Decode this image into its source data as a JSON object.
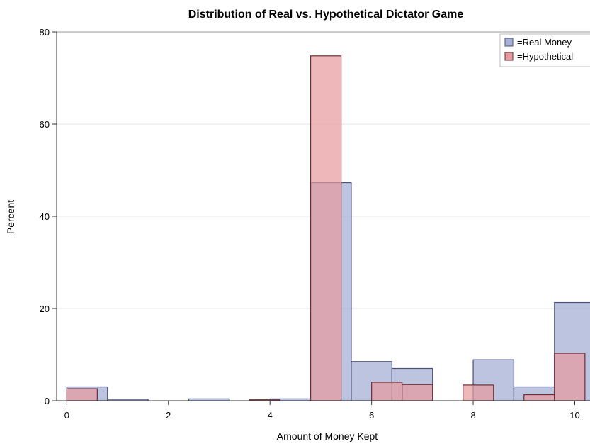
{
  "chart_data": {
    "type": "bar",
    "title": "Distribution of Real vs. Hypothetical Dictator Game",
    "xlabel": "Amount of Money Kept",
    "ylabel": "Percent",
    "xlim": [
      -0.2,
      10.3
    ],
    "ylim": [
      0,
      80
    ],
    "xticks": [
      0,
      2,
      4,
      6,
      8,
      10
    ],
    "yticks": [
      0,
      20,
      40,
      60,
      80
    ],
    "grid": true,
    "legend_position": "top-right",
    "series": [
      {
        "name": "=Real Money",
        "color": "#a7b0d6",
        "stroke": "#4b527a",
        "bins": [
          {
            "x0": 0.0,
            "x1": 0.8,
            "y": 3.0
          },
          {
            "x0": 0.8,
            "x1": 1.6,
            "y": 0.3
          },
          {
            "x0": 2.4,
            "x1": 3.2,
            "y": 0.4
          },
          {
            "x0": 4.0,
            "x1": 4.8,
            "y": 0.4
          },
          {
            "x0": 4.8,
            "x1": 5.6,
            "y": 47.3
          },
          {
            "x0": 5.6,
            "x1": 6.4,
            "y": 8.5
          },
          {
            "x0": 6.4,
            "x1": 7.2,
            "y": 7.0
          },
          {
            "x0": 8.0,
            "x1": 8.8,
            "y": 8.9
          },
          {
            "x0": 8.8,
            "x1": 9.6,
            "y": 3.0
          },
          {
            "x0": 9.6,
            "x1": 10.4,
            "y": 21.3
          }
        ]
      },
      {
        "name": "=Hypothetical",
        "color": "#e79a9e",
        "stroke": "#6b2f35",
        "bins": [
          {
            "x0": 0.0,
            "x1": 0.6,
            "y": 2.6
          },
          {
            "x0": 3.6,
            "x1": 4.2,
            "y": 0.2
          },
          {
            "x0": 4.8,
            "x1": 5.4,
            "y": 74.8
          },
          {
            "x0": 6.0,
            "x1": 6.6,
            "y": 4.0
          },
          {
            "x0": 6.6,
            "x1": 7.2,
            "y": 3.5
          },
          {
            "x0": 7.8,
            "x1": 8.4,
            "y": 3.4
          },
          {
            "x0": 9.0,
            "x1": 9.6,
            "y": 1.3
          },
          {
            "x0": 9.6,
            "x1": 10.2,
            "y": 10.3
          }
        ]
      }
    ]
  }
}
